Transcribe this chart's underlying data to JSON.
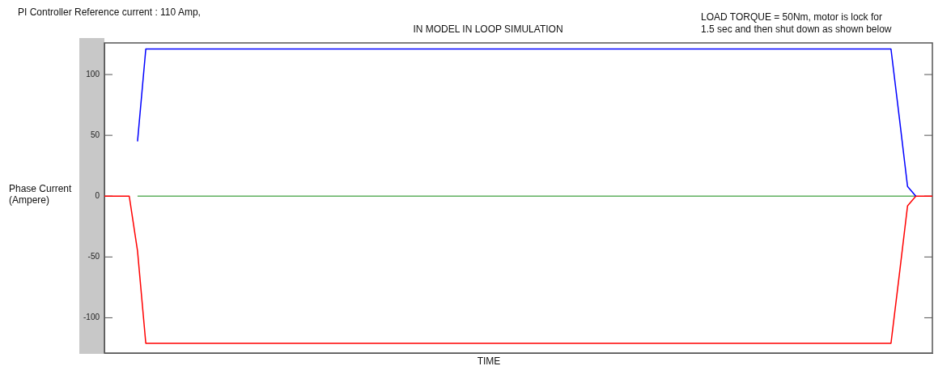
{
  "chart_data": {
    "type": "line",
    "title": "IN MODEL IN LOOP SIMULATION",
    "xlabel": "TIME",
    "ylabel": "Phase Current (Ampere)",
    "annotations": [
      "PI Controller Reference current : 110 Amp,",
      "LOAD TORQUE = 50Nm, motor is lock for 1.5 sec and then shut down as shown below"
    ],
    "categories": [
      null,
      null,
      null,
      null,
      null,
      null,
      null,
      null,
      null,
      null,
      null,
      null,
      null,
      null,
      null,
      null,
      null,
      null,
      null,
      null,
      null,
      null,
      null,
      null,
      null,
      null,
      null,
      null,
      null,
      null,
      null,
      null,
      null,
      null,
      null,
      null,
      null,
      null,
      null,
      null,
      null,
      null,
      null,
      null,
      null,
      null,
      null,
      null,
      null,
      null,
      null,
      null,
      null,
      null,
      null,
      null,
      null,
      null,
      null,
      null,
      null,
      null,
      null,
      null,
      null,
      null,
      null,
      null,
      null,
      null,
      null,
      null,
      null,
      null,
      null,
      null,
      null,
      null,
      null,
      null,
      null,
      null,
      null,
      null,
      null,
      null,
      null,
      null,
      null,
      null,
      null,
      null,
      null,
      null,
      null,
      null,
      null,
      null,
      null,
      null,
      null
    ],
    "series": [
      {
        "color": "#0000ff",
        "values": [
          null,
          null,
          null,
          null,
          45,
          121,
          121,
          121,
          121,
          121,
          121,
          121,
          121,
          121,
          121,
          121,
          121,
          121,
          121,
          121,
          121,
          121,
          121,
          121,
          121,
          121,
          121,
          121,
          121,
          121,
          121,
          121,
          121,
          121,
          121,
          121,
          121,
          121,
          121,
          121,
          121,
          121,
          121,
          121,
          121,
          121,
          121,
          121,
          121,
          121,
          121,
          121,
          121,
          121,
          121,
          121,
          121,
          121,
          121,
          121,
          121,
          121,
          121,
          121,
          121,
          121,
          121,
          121,
          121,
          121,
          121,
          121,
          121,
          121,
          121,
          121,
          121,
          121,
          121,
          121,
          121,
          121,
          121,
          121,
          121,
          121,
          121,
          121,
          121,
          121,
          121,
          121,
          121,
          121,
          121,
          121,
          65,
          8,
          0,
          null,
          null
        ]
      },
      {
        "color": "#ff0000",
        "values": [
          0,
          0,
          0,
          0,
          -45,
          -121,
          -121,
          -121,
          -121,
          -121,
          -121,
          -121,
          -121,
          -121,
          -121,
          -121,
          -121,
          -121,
          -121,
          -121,
          -121,
          -121,
          -121,
          -121,
          -121,
          -121,
          -121,
          -121,
          -121,
          -121,
          -121,
          -121,
          -121,
          -121,
          -121,
          -121,
          -121,
          -121,
          -121,
          -121,
          -121,
          -121,
          -121,
          -121,
          -121,
          -121,
          -121,
          -121,
          -121,
          -121,
          -121,
          -121,
          -121,
          -121,
          -121,
          -121,
          -121,
          -121,
          -121,
          -121,
          -121,
          -121,
          -121,
          -121,
          -121,
          -121,
          -121,
          -121,
          -121,
          -121,
          -121,
          -121,
          -121,
          -121,
          -121,
          -121,
          -121,
          -121,
          -121,
          -121,
          -121,
          -121,
          -121,
          -121,
          -121,
          -121,
          -121,
          -121,
          -121,
          -121,
          -121,
          -121,
          -121,
          -121,
          -121,
          -121,
          -65,
          -8,
          0,
          0,
          0
        ]
      },
      {
        "color": "#60b060",
        "values": [
          null,
          null,
          null,
          null,
          0,
          0,
          0,
          0,
          0,
          0,
          0,
          0,
          0,
          0,
          0,
          0,
          0,
          0,
          0,
          0,
          0,
          0,
          0,
          0,
          0,
          0,
          0,
          0,
          0,
          0,
          0,
          0,
          0,
          0,
          0,
          0,
          0,
          0,
          0,
          0,
          0,
          0,
          0,
          0,
          0,
          0,
          0,
          0,
          0,
          0,
          0,
          0,
          0,
          0,
          0,
          0,
          0,
          0,
          0,
          0,
          0,
          0,
          0,
          0,
          0,
          0,
          0,
          0,
          0,
          0,
          0,
          0,
          0,
          0,
          0,
          0,
          0,
          0,
          0,
          0,
          0,
          0,
          0,
          0,
          0,
          0,
          0,
          0,
          0,
          0,
          0,
          0,
          0,
          0,
          0,
          0,
          0,
          0,
          0,
          null,
          null
        ]
      }
    ],
    "ylim": [
      -129,
      126
    ],
    "yticks": [
      -100,
      -50,
      0,
      50,
      100
    ],
    "tick_labels": "y",
    "grid": false,
    "legend": false,
    "marker": "none",
    "line_style": "solid"
  }
}
